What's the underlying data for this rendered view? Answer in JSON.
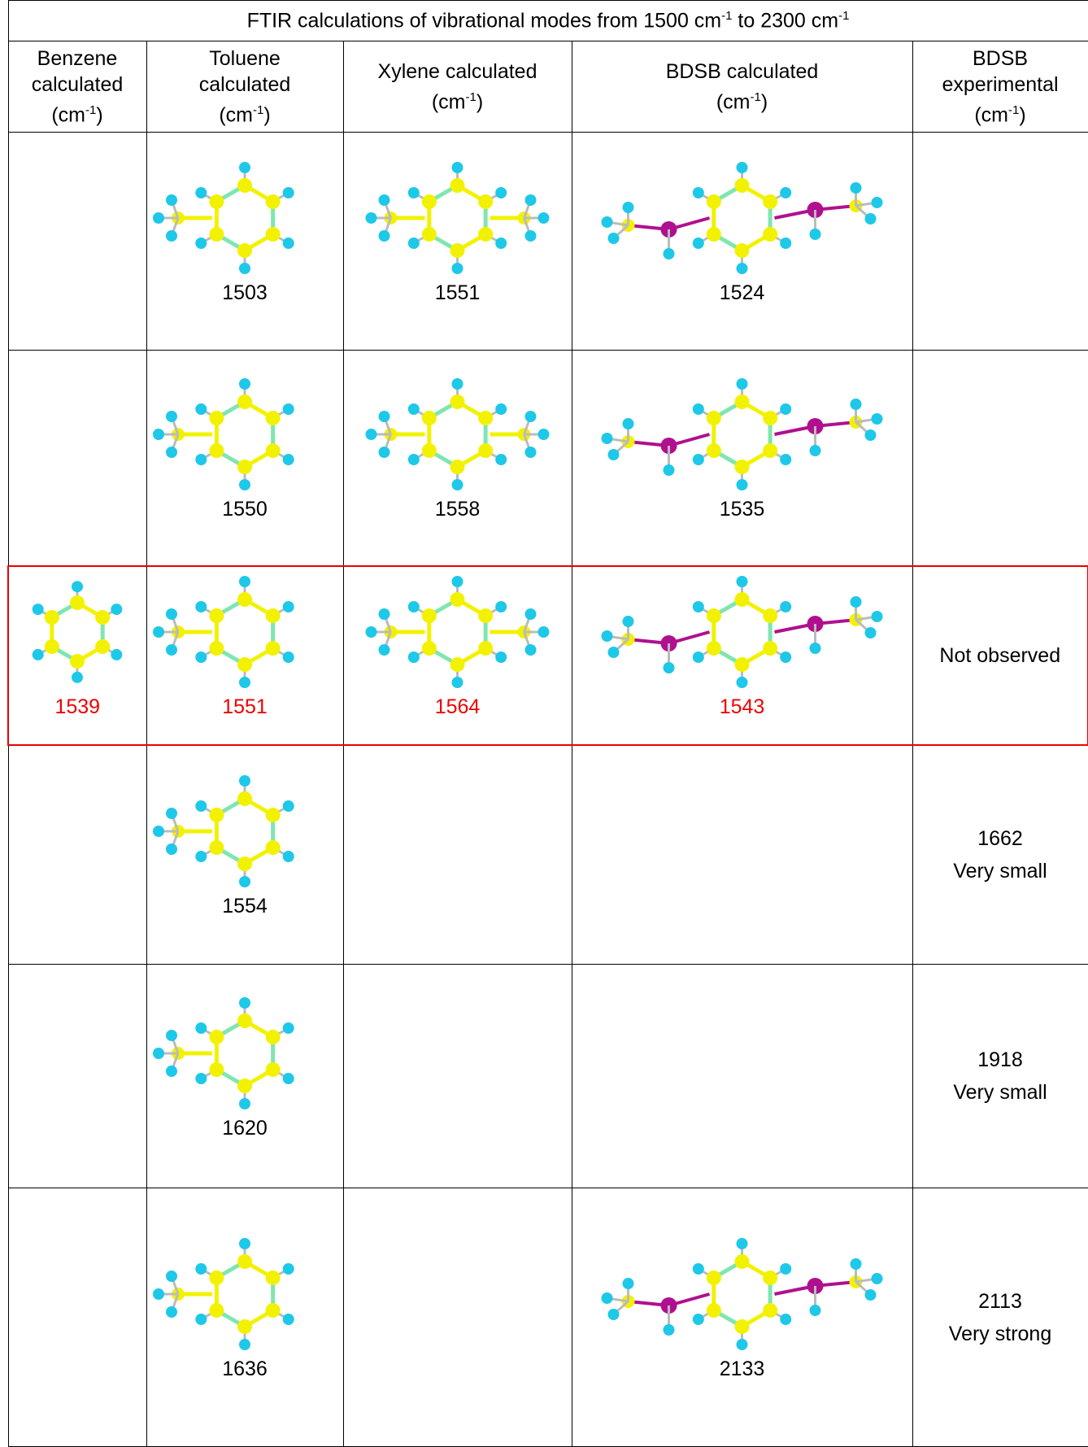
{
  "table": {
    "title": {
      "parts": [
        "FTIR calculations of vibrational modes from 1500 cm",
        "-1",
        " to 2300 cm",
        "-1"
      ]
    },
    "headers": [
      {
        "lines": [
          "Benzene",
          "calculated"
        ],
        "unit_open": "(cm",
        "exponent": "-1",
        "unit_close": ")"
      },
      {
        "lines": [
          "Toluene",
          "calculated"
        ],
        "unit_open": "(cm",
        "exponent": "-1",
        "unit_close": ")"
      },
      {
        "lines": [
          "Xylene calculated"
        ],
        "unit_open": "(cm",
        "exponent": "-1",
        "unit_close": ")"
      },
      {
        "lines": [
          "BDSB calculated"
        ],
        "unit_open": "(cm",
        "exponent": "-1",
        "unit_close": ")"
      },
      {
        "lines": [
          "BDSB",
          "experimental"
        ],
        "unit_open": "(cm",
        "exponent": "-1",
        "unit_close": ")"
      }
    ],
    "rows": [
      {
        "highlight": false,
        "cells": [
          null,
          1503,
          1551,
          1524,
          null
        ]
      },
      {
        "highlight": false,
        "cells": [
          null,
          1550,
          1558,
          1535,
          null
        ]
      },
      {
        "highlight": true,
        "cells": [
          1539,
          1551,
          1564,
          1543,
          {
            "note": "Not observed"
          }
        ]
      },
      {
        "highlight": false,
        "cells": [
          null,
          1554,
          null,
          null,
          {
            "value": 1662,
            "note": "Very small"
          }
        ]
      },
      {
        "highlight": false,
        "cells": [
          null,
          1620,
          null,
          null,
          {
            "value": 1918,
            "note": "Very small"
          }
        ]
      },
      {
        "highlight": false,
        "cells": [
          null,
          1636,
          null,
          2133,
          {
            "value": 2113,
            "note": "Very strong"
          }
        ]
      }
    ]
  }
}
